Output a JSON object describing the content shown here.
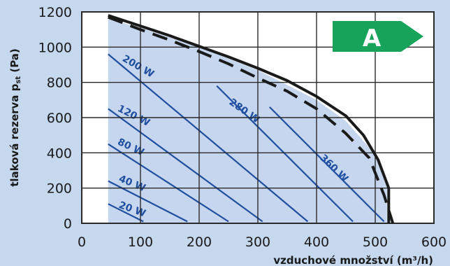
{
  "chart_data": {
    "type": "line",
    "xlabel": "vzduchové množství (m³/h)",
    "ylabel_parts": [
      "tlaková rezerva p",
      "st",
      " (Pa)"
    ],
    "xlim": [
      0,
      600
    ],
    "ylim": [
      0,
      1200
    ],
    "x_ticks": [
      0,
      100,
      200,
      300,
      400,
      500,
      600
    ],
    "y_ticks": [
      0,
      200,
      400,
      600,
      800,
      1000,
      1200
    ],
    "grid": true,
    "operating_area": [
      [
        45,
        1160
      ],
      [
        100,
        1110
      ],
      [
        200,
        1000
      ],
      [
        300,
        870
      ],
      [
        400,
        700
      ],
      [
        450,
        580
      ],
      [
        500,
        390
      ],
      [
        520,
        200
      ],
      [
        520,
        0
      ],
      [
        45,
        0
      ]
    ],
    "series": [
      {
        "line_style": "solid-thick",
        "points": [
          [
            45,
            1180
          ],
          [
            100,
            1120
          ],
          [
            150,
            1065
          ],
          [
            200,
            1005
          ],
          [
            250,
            945
          ],
          [
            300,
            880
          ],
          [
            350,
            810
          ],
          [
            400,
            720
          ],
          [
            450,
            610
          ],
          [
            480,
            500
          ],
          [
            505,
            360
          ],
          [
            523,
            200
          ],
          [
            523,
            0
          ]
        ]
      },
      {
        "line_style": "dashed-thick",
        "points": [
          [
            45,
            1170
          ],
          [
            100,
            1100
          ],
          [
            150,
            1040
          ],
          [
            200,
            975
          ],
          [
            250,
            905
          ],
          [
            300,
            825
          ],
          [
            350,
            750
          ],
          [
            400,
            650
          ],
          [
            450,
            510
          ],
          [
            490,
            370
          ],
          [
            515,
            160
          ],
          [
            530,
            0
          ]
        ]
      }
    ],
    "power_lines": [
      {
        "label": "360 W",
        "points": [
          [
            320,
            660
          ],
          [
            515,
            10
          ]
        ]
      },
      {
        "label": "280 W",
        "points": [
          [
            230,
            780
          ],
          [
            462,
            10
          ]
        ]
      },
      {
        "label": "200 W",
        "points": [
          [
            45,
            960
          ],
          [
            385,
            10
          ]
        ]
      },
      {
        "label": "120 W",
        "points": [
          [
            45,
            650
          ],
          [
            308,
            10
          ]
        ]
      },
      {
        "label": "80 W",
        "points": [
          [
            45,
            450
          ],
          [
            250,
            10
          ]
        ]
      },
      {
        "label": "40 W",
        "points": [
          [
            45,
            240
          ],
          [
            180,
            10
          ]
        ]
      },
      {
        "label": "20 W",
        "points": [
          [
            45,
            110
          ],
          [
            105,
            10
          ]
        ]
      }
    ],
    "power_label_positions": [
      {
        "label": "360 W",
        "x": 405,
        "y": 368,
        "angle": 44
      },
      {
        "label": "280 W",
        "x": 250,
        "y": 680,
        "angle": 35
      },
      {
        "label": "200 W",
        "x": 68,
        "y": 925,
        "angle": 30
      },
      {
        "label": "120 W",
        "x": 60,
        "y": 640,
        "angle": 27
      },
      {
        "label": "80 W",
        "x": 60,
        "y": 450,
        "angle": 25
      },
      {
        "label": "40 W",
        "x": 62,
        "y": 240,
        "angle": 22
      },
      {
        "label": "20 W",
        "x": 62,
        "y": 90,
        "angle": 20
      }
    ],
    "colors": {
      "background": "#c5d8ee",
      "plot_background": "#ffffff",
      "operating_area": "#c6d6ee",
      "grid": "#2a2a2a",
      "curve": "#1a1a1a",
      "power_line": "#1f4fa0",
      "badge": "#17a35a"
    }
  },
  "badge": {
    "label": "A",
    "color": "#17a35a"
  }
}
